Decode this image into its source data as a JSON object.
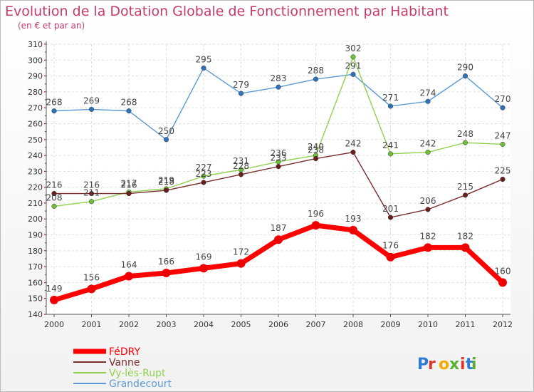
{
  "chart_data": {
    "type": "line",
    "title": "Evolution de la Dotation Globale de Fonctionnement par Habitant",
    "subtitle": "(en € et par an)",
    "xlabel": "",
    "ylabel": "",
    "categories": [
      "2000",
      "2001",
      "2002",
      "2003",
      "2004",
      "2005",
      "2006",
      "2007",
      "2008",
      "2009",
      "2010",
      "2011",
      "2012"
    ],
    "ylim": [
      140,
      310
    ],
    "yticks": [
      "140",
      "150",
      "160",
      "170",
      "180",
      "190",
      "200",
      "210",
      "220",
      "230",
      "240",
      "250",
      "260",
      "270",
      "280",
      "290",
      "300",
      "310"
    ],
    "grid": true,
    "legend_position": "bottom-left",
    "series": [
      {
        "name": "Grandecourt",
        "color": "#5b9bd5",
        "marker": "#2f72b8",
        "values": [
          268,
          269,
          268,
          250,
          295,
          279,
          283,
          288,
          291,
          271,
          274,
          290,
          270
        ]
      },
      {
        "name": "Vy-lès-Rupt",
        "color": "#92d050",
        "marker": "#6fbf3a",
        "values": [
          208,
          211,
          217,
          219,
          227,
          231,
          236,
          240,
          302,
          241,
          242,
          248,
          247
        ]
      },
      {
        "name": "Vanne",
        "color": "#7b2c2c",
        "marker": "#6a1f1f",
        "values": [
          216,
          216,
          216,
          218,
          223,
          228,
          233,
          238,
          242,
          201,
          206,
          215,
          225
        ]
      },
      {
        "name": "FéDRY",
        "color": "#ff0000",
        "marker": "#ee0000",
        "values": [
          149,
          156,
          164,
          166,
          169,
          172,
          187,
          196,
          193,
          176,
          182,
          182,
          160
        ]
      }
    ]
  },
  "logo": {
    "text": "Proxiti"
  }
}
